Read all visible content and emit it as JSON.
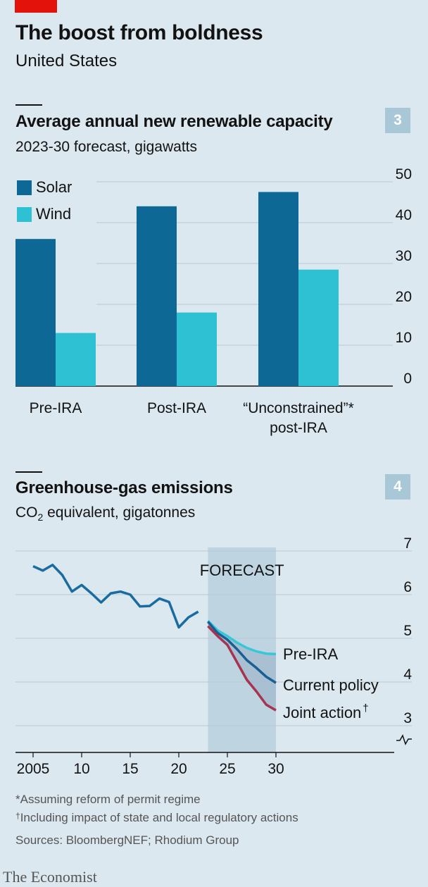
{
  "header": {
    "title": "The boost from boldness",
    "subtitle": "United States"
  },
  "chart3": {
    "number": "3",
    "title": "Average annual new renewable capacity",
    "subtitle": "2023-30 forecast, gigawatts"
  },
  "chart4": {
    "number": "4",
    "title": "Greenhouse-gas emissions",
    "subtitle_prefix": "CO",
    "subtitle_sub": "2",
    "subtitle_suffix": " equivalent, gigatonnes",
    "forecast_label": "FORECAST"
  },
  "footer": {
    "note1": "*Assuming reform of permit regime",
    "note2_mark": "†",
    "note2": "Including impact of state and local regulatory actions",
    "sources": "Sources: BloombergNEF; Rhodium Group",
    "brand": "The Economist"
  },
  "colors": {
    "solar": "#0d6896",
    "wind": "#2ec1d3",
    "pre_ira": "#37c8d8",
    "current_policy": "#1a5f93",
    "joint_action": "#a63450",
    "history": "#1a6ba0",
    "forecast_shade": "#b9d0de"
  },
  "chart_data": [
    {
      "type": "bar",
      "title": "Average annual new renewable capacity",
      "subtitle": "2023-30 forecast, gigawatts",
      "categories": [
        "Pre-IRA",
        "Post-IRA",
        "“Unconstrained”* post-IRA"
      ],
      "category_lines": [
        [
          "Pre-IRA"
        ],
        [
          "Post-IRA"
        ],
        [
          "“Unconstrained”*",
          "post-IRA"
        ]
      ],
      "series": [
        {
          "name": "Solar",
          "values": [
            36,
            44,
            47.5
          ]
        },
        {
          "name": "Wind",
          "values": [
            13,
            18,
            28.5
          ]
        }
      ],
      "ylim": [
        0,
        50
      ],
      "yticks": [
        0,
        10,
        20,
        30,
        40,
        50
      ],
      "legend": "top-left",
      "grid": true
    },
    {
      "type": "line",
      "title": "Greenhouse-gas emissions",
      "subtitle": "CO2 equivalent, gigatonnes",
      "ylim": [
        3,
        7
      ],
      "yticks": [
        3,
        4,
        5,
        6,
        7
      ],
      "xticks": [
        {
          "value": 2005,
          "label": "2005"
        },
        {
          "value": 2010,
          "label": "10"
        },
        {
          "value": 2015,
          "label": "15"
        },
        {
          "value": 2020,
          "label": "20"
        },
        {
          "value": 2025,
          "label": "25"
        },
        {
          "value": 2030,
          "label": "30"
        }
      ],
      "xlim": [
        2003,
        2030.5
      ],
      "forecast_start": 2023,
      "broken_axis": true,
      "grid": true,
      "history": {
        "x": [
          2005,
          2006,
          2007,
          2008,
          2009,
          2010,
          2011,
          2012,
          2013,
          2014,
          2015,
          2016,
          2017,
          2018,
          2019,
          2020,
          2021,
          2022
        ],
        "y": [
          6.65,
          6.55,
          6.68,
          6.45,
          6.07,
          6.22,
          6.03,
          5.82,
          6.03,
          6.07,
          6.0,
          5.73,
          5.74,
          5.91,
          5.83,
          5.25,
          5.48,
          5.61
        ]
      },
      "series": [
        {
          "name": "Pre-IRA",
          "label": "Pre-IRA",
          "x": [
            2023,
            2024,
            2025,
            2026,
            2027,
            2028,
            2029,
            2030
          ],
          "y": [
            5.4,
            5.18,
            5.05,
            4.9,
            4.78,
            4.7,
            4.65,
            4.64
          ]
        },
        {
          "name": "Current policy",
          "label": "Current policy",
          "x": [
            2023,
            2024,
            2025,
            2026,
            2027,
            2028,
            2029,
            2030
          ],
          "y": [
            5.38,
            5.12,
            4.97,
            4.75,
            4.5,
            4.32,
            4.12,
            3.98
          ]
        },
        {
          "name": "Joint action",
          "label": "Joint action",
          "label_mark": "†",
          "x": [
            2023,
            2024,
            2025,
            2026,
            2027,
            2028,
            2029,
            2030
          ],
          "y": [
            5.28,
            5.05,
            4.85,
            4.45,
            4.05,
            3.78,
            3.48,
            3.35
          ]
        }
      ]
    }
  ]
}
